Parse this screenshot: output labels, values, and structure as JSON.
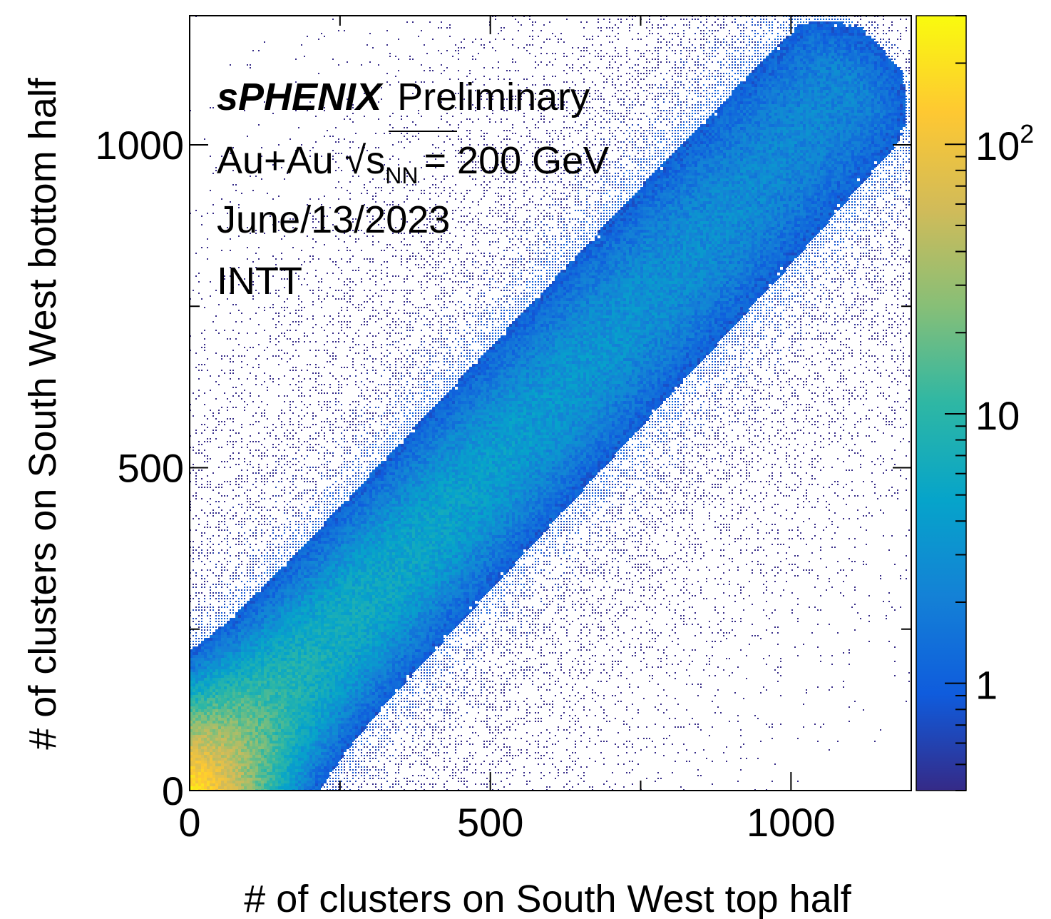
{
  "chart_data": {
    "type": "heatmap",
    "title": "",
    "xlabel": "# of clusters on South West top half",
    "ylabel": "# of clusters on South West bottom half",
    "xlim": [
      0,
      1200
    ],
    "ylim": [
      0,
      1200
    ],
    "x_ticks": [
      {
        "value": 0,
        "label": "0"
      },
      {
        "value": 500,
        "label": "500"
      },
      {
        "value": 1000,
        "label": "1000"
      }
    ],
    "y_ticks": [
      {
        "value": 0,
        "label": "0"
      },
      {
        "value": 500,
        "label": "500"
      },
      {
        "value": 1000,
        "label": "1000"
      }
    ],
    "colorbar": {
      "scale": "log",
      "range": [
        0.4,
        300
      ],
      "ticks": [
        {
          "value": 1,
          "label": "1"
        },
        {
          "value": 10,
          "label": "10"
        },
        {
          "value": 100,
          "label": "10",
          "sup": "2"
        }
      ],
      "palette": [
        "#352a87",
        "#0f5cdd",
        "#1481d6",
        "#06a4ca",
        "#2eb7a4",
        "#87bf77",
        "#d1bb59",
        "#fec832",
        "#f9fb0e"
      ]
    },
    "density_model": {
      "relation": "y ≈ x",
      "peak_at": [
        20,
        20
      ],
      "bulk_extent_x": [
        0,
        1100
      ],
      "spread_sigma": [
        55,
        75
      ]
    },
    "annotations": {
      "experiment": "sPHENIX",
      "status": "Preliminary",
      "collision_prefix": "Au+Au",
      "sqrt_symbol": "√",
      "sqrt_s": "s",
      "sqrt_s_sub": "NN",
      "energy": "= 200 GeV",
      "date": "June/13/2023",
      "detector": "INTT"
    }
  }
}
